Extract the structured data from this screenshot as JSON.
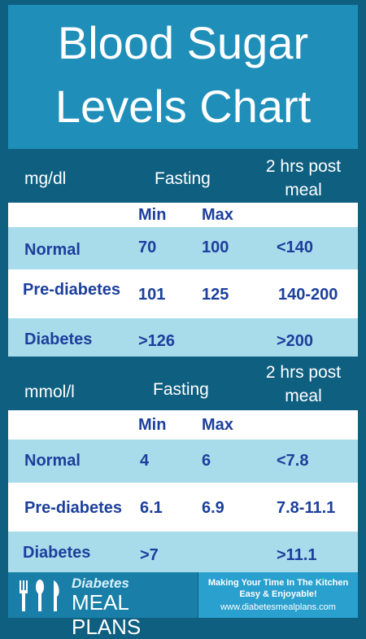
{
  "title": {
    "line1": "Blood Sugar",
    "line2": "Levels Chart"
  },
  "tables": [
    {
      "unit": "mg/dl",
      "fasting_label": "Fasting",
      "post_label_line1": "2 hrs post",
      "post_label_line2": "meal",
      "min_label": "Min",
      "max_label": "Max",
      "rows": [
        {
          "label": "Normal",
          "min": "70",
          "max": "100",
          "post": "<140"
        },
        {
          "label": "Pre-diabetes",
          "min": "101",
          "max": "125",
          "post": "140-200"
        },
        {
          "label": "Diabetes",
          "min": ">126",
          "max": "",
          "post": ">200"
        }
      ]
    },
    {
      "unit": "mmol/l",
      "fasting_label": "Fasting",
      "post_label_line1": "2 hrs post",
      "post_label_line2": "meal",
      "min_label": "Min",
      "max_label": "Max",
      "rows": [
        {
          "label": "Normal",
          "min": "4",
          "max": "6",
          "post": "<7.8"
        },
        {
          "label": "Pre-diabetes",
          "min": "6.1",
          "max": "6.9",
          "post": "7.8-11.1"
        },
        {
          "label": "Diabetes",
          "min": ">7",
          "max": "",
          "post": ">11.1"
        }
      ]
    }
  ],
  "footer": {
    "brand_line1": "Diabetes",
    "brand_line2": "MEAL PLANS",
    "tagline1": "Making Your Time In The Kitchen",
    "tagline2": "Easy & Enjoyable!",
    "url": "www.diabetesmealplans.com"
  },
  "colors": {
    "background": "#0f5f80",
    "title_box": "#1f8fba",
    "row_blue": "#a9dceb",
    "text_blue": "#1b3f9c"
  }
}
